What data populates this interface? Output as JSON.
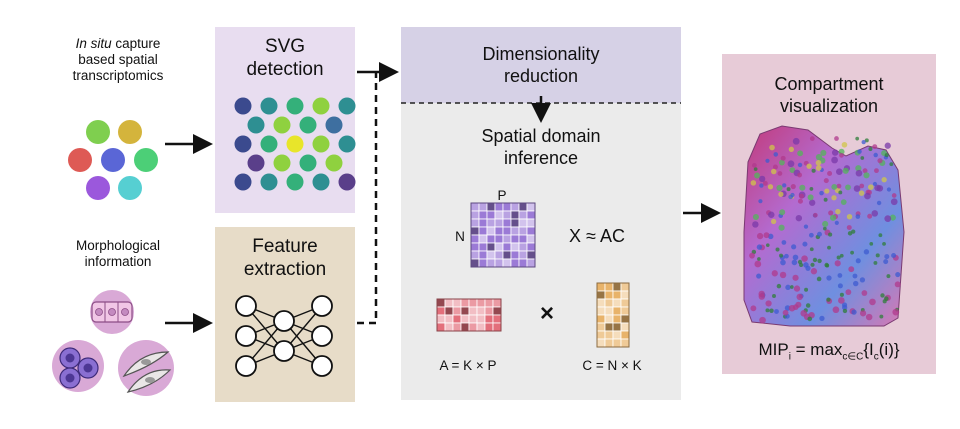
{
  "inputs": {
    "spatial": {
      "label_italic": "In situ",
      "label_rest": " capture",
      "line2": "based spatial",
      "line3": "transcriptomics",
      "spot_colors": [
        "#7fcf4f",
        "#d4b43c",
        "#de5a55",
        "#5a66d6",
        "#4ccf77",
        "#9b58dc",
        "#56cfd2"
      ]
    },
    "morphology": {
      "line1": "Morphological",
      "line2": "information"
    }
  },
  "svg_detection": {
    "title_line1": "SVG",
    "title_line2": "detection",
    "bg_color": "#e8ddf0",
    "dot_palette": [
      "#3b4a8e",
      "#2e8f92",
      "#34b07a",
      "#8fd13f",
      "#e8e52a",
      "#5a3f8a",
      "#3e6fa0"
    ]
  },
  "feature_extraction": {
    "title_line1": "Feature",
    "title_line2": "extraction",
    "bg_color": "#e7dcc8"
  },
  "dimensionality": {
    "title_line1": "Dimensionality",
    "title_line2": "reduction",
    "bg_color": "#d6d1e6"
  },
  "spatial_domain": {
    "title_line1": "Spatial domain",
    "title_line2": "inference",
    "bg_color": "#ebebeb",
    "p_label": "P",
    "n_label": "N",
    "equation": "X ≈ AC",
    "times": "×",
    "a_label": "A = K × P",
    "c_label": "C = N × K",
    "x_color": "#9b7ad6",
    "a_color": "#e36f7b",
    "c_color": "#e8b36a"
  },
  "compartment": {
    "title_line1": "Compartment",
    "title_line2": "visualization",
    "bg_color": "#e7cbd7",
    "mip_main": "MIP",
    "mip_sub_i": "i",
    "mip_eq": " = max",
    "mip_sub_c": "c∈C",
    "mip_brace": "{I",
    "mip_sub_c2": "c",
    "mip_end": "(i)}"
  }
}
